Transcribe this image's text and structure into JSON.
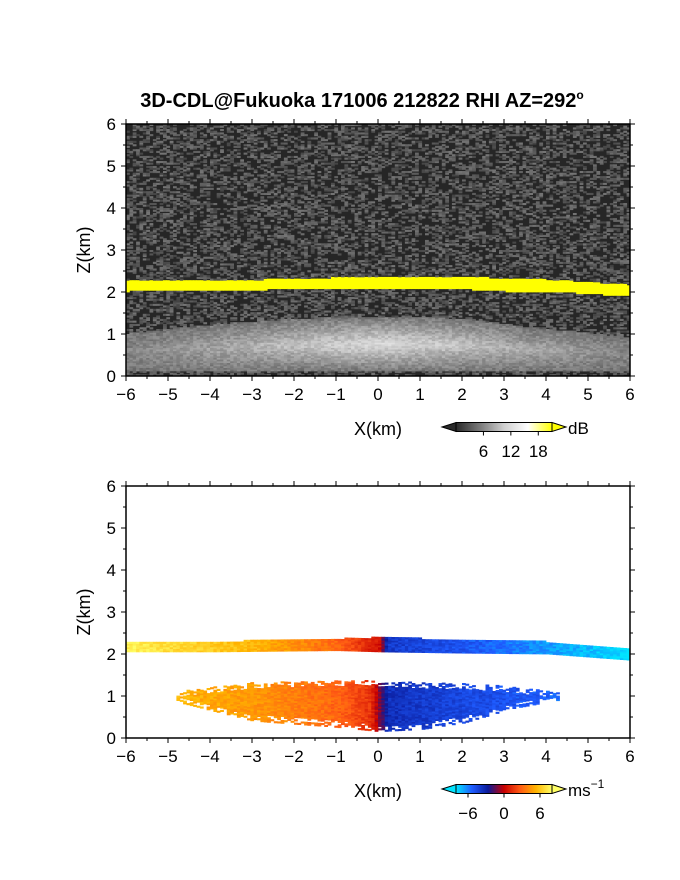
{
  "figure": {
    "title": "3D-CDL@Fukuoka 171006 212822 RHI AZ=292",
    "title_degree_mark": "o"
  },
  "chart_data": [
    {
      "type": "heatmap",
      "name": "snr",
      "xlabel": "X(km)",
      "ylabel": "Z(km)",
      "xlim": [
        -6,
        6
      ],
      "ylim": [
        0,
        6
      ],
      "x_ticks": [
        "−6",
        "−5",
        "−4",
        "−3",
        "−2",
        "−1",
        "0",
        "1",
        "2",
        "3",
        "4",
        "5",
        "6"
      ],
      "y_ticks": [
        "0",
        "1",
        "2",
        "3",
        "4",
        "5",
        "6"
      ],
      "colorbar": {
        "unit": "dB",
        "ticks": [
          "6",
          "12",
          "18"
        ],
        "range": [
          0,
          21
        ],
        "colors": [
          "#2a2a2a",
          "#7a7a7a",
          "#cfcfcf",
          "#ffffff",
          "#ffff00"
        ]
      },
      "layers": [
        {
          "kind": "background_noise",
          "value_db": 3
        },
        {
          "kind": "layer",
          "value_db": 21,
          "top_km": [
            [
              -6,
              2.25
            ],
            [
              -4,
              2.25
            ],
            [
              -2,
              2.3
            ],
            [
              0,
              2.35
            ],
            [
              2,
              2.35
            ],
            [
              3,
              2.3
            ],
            [
              4,
              2.28
            ],
            [
              6,
              2.15
            ]
          ],
          "bottom_km": [
            [
              -6,
              2.0
            ],
            [
              -4,
              2.02
            ],
            [
              -2,
              2.05
            ],
            [
              0,
              2.08
            ],
            [
              2,
              2.05
            ],
            [
              3,
              2.0
            ],
            [
              4,
              2.0
            ],
            [
              6,
              1.88
            ]
          ]
        },
        {
          "kind": "aerosol",
          "value_db": 12,
          "top_km": [
            [
              -6,
              1.0
            ],
            [
              -4,
              1.2
            ],
            [
              -2,
              1.35
            ],
            [
              0,
              1.4
            ],
            [
              2,
              1.35
            ],
            [
              3.5,
              1.15
            ],
            [
              6,
              0.9
            ]
          ],
          "bottom_km": [
            [
              -6,
              0.1
            ],
            [
              6,
              0.1
            ]
          ]
        }
      ]
    },
    {
      "type": "heatmap",
      "name": "doppler",
      "xlabel": "X(km)",
      "ylabel": "Z(km)",
      "xlim": [
        -6,
        6
      ],
      "ylim": [
        0,
        6
      ],
      "x_ticks": [
        "−6",
        "−5",
        "−4",
        "−3",
        "−2",
        "−1",
        "0",
        "1",
        "2",
        "3",
        "4",
        "5",
        "6"
      ],
      "y_ticks": [
        "0",
        "1",
        "2",
        "3",
        "4",
        "5",
        "6"
      ],
      "colorbar": {
        "unit": "ms",
        "unit_exponent": "−1",
        "ticks": [
          "−6",
          "0",
          "6"
        ],
        "range": [
          -8,
          8
        ],
        "colors": [
          "#00e5ff",
          "#1f5cff",
          "#0a1a99",
          "#c80000",
          "#ff5a14",
          "#ffb400",
          "#ffff66"
        ]
      },
      "layers": [
        {
          "kind": "layer",
          "top_km": [
            [
              -6,
              2.28
            ],
            [
              -4,
              2.28
            ],
            [
              -1,
              2.35
            ],
            [
              0,
              2.38
            ],
            [
              2,
              2.33
            ],
            [
              4,
              2.28
            ],
            [
              6,
              2.12
            ]
          ],
          "bottom_km": [
            [
              -6,
              2.05
            ],
            [
              -4,
              2.05
            ],
            [
              -1,
              2.08
            ],
            [
              0,
              2.05
            ],
            [
              2,
              2.02
            ],
            [
              4,
              2.0
            ],
            [
              6,
              1.85
            ]
          ],
          "velocity_ms": [
            [
              -6,
              7.5
            ],
            [
              -3,
              5.5
            ],
            [
              -1,
              3
            ],
            [
              0,
              0.5
            ],
            [
              0.2,
              -4
            ],
            [
              2,
              -5
            ],
            [
              4,
              -6.5
            ],
            [
              6,
              -8
            ]
          ]
        },
        {
          "kind": "aerosol",
          "top_km": [
            [
              -4.8,
              1.1
            ],
            [
              -3,
              1.3
            ],
            [
              -1,
              1.35
            ],
            [
              0,
              1.35
            ],
            [
              1,
              1.3
            ],
            [
              2,
              1.28
            ],
            [
              3.2,
              1.2
            ],
            [
              4.3,
              1.05
            ]
          ],
          "bottom_km": [
            [
              -4.8,
              0.85
            ],
            [
              -3,
              0.4
            ],
            [
              -1,
              0.25
            ],
            [
              0,
              0.15
            ],
            [
              1,
              0.2
            ],
            [
              2,
              0.35
            ],
            [
              3.2,
              0.7
            ],
            [
              4.3,
              0.9
            ]
          ],
          "velocity_ms": [
            [
              -5,
              5.5
            ],
            [
              -3,
              4.5
            ],
            [
              -1,
              3
            ],
            [
              -0.2,
              1.5
            ],
            [
              0.2,
              -3.5
            ],
            [
              2,
              -4.5
            ],
            [
              4.3,
              -5.5
            ]
          ]
        }
      ]
    }
  ]
}
